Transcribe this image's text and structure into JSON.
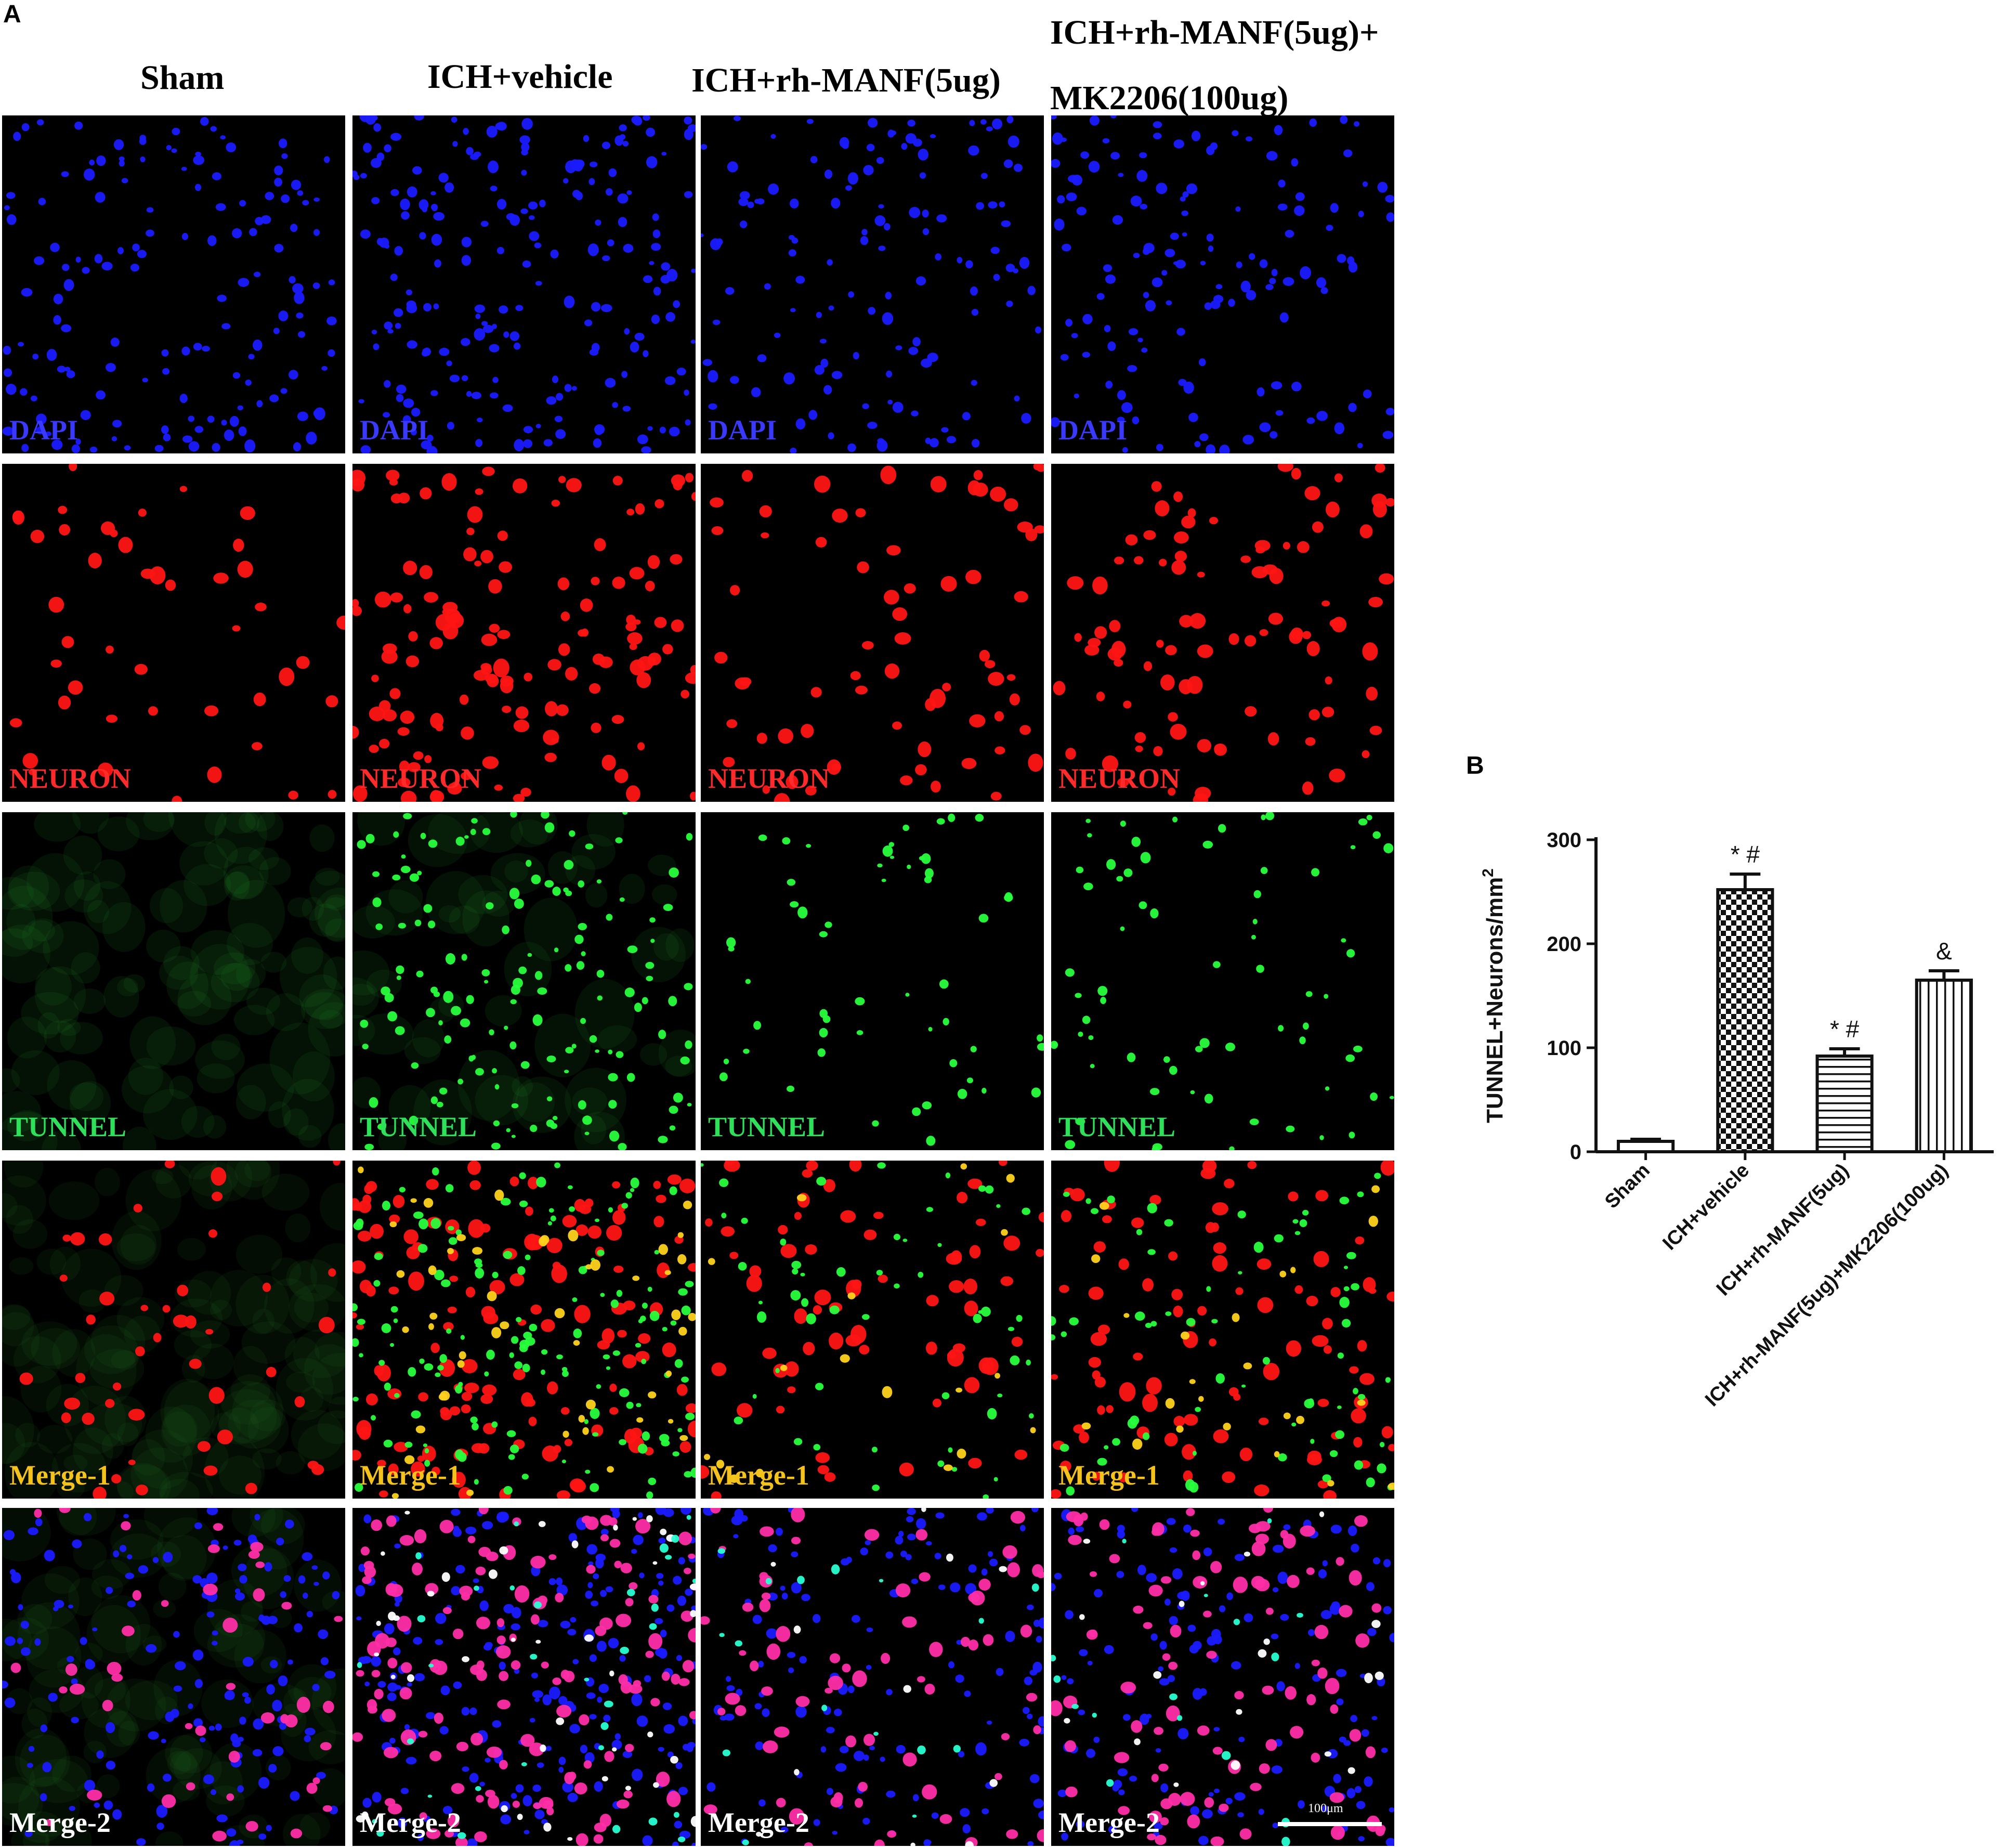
{
  "figure": {
    "panel_a_letter": "A",
    "panel_b_letter": "B",
    "columns": [
      {
        "lines": [
          "Sham"
        ]
      },
      {
        "lines": [
          "ICH+vehicle"
        ]
      },
      {
        "lines": [
          "ICH+rh-MANF(5ug)"
        ]
      },
      {
        "lines": [
          "ICH+rh-MANF(5ug)+",
          "MK2206(100ug)"
        ]
      }
    ],
    "rows": [
      {
        "label": "DAPI",
        "label_color": "#3a3aff"
      },
      {
        "label": "NEURON",
        "label_color": "#ff2a2a"
      },
      {
        "label": "TUNNEL",
        "label_color": "#2ee05a"
      },
      {
        "label": "Merge-1",
        "label_color": "#f5c21b"
      },
      {
        "label": "Merge-2",
        "label_color": "#ffffff"
      }
    ],
    "scalebar_label": "100μm"
  },
  "chart_data": {
    "type": "bar",
    "categories": [
      "Sham",
      "ICH+vehicle",
      "ICH+rh-MANF(5ug)",
      "ICH+rh-MANF(5ug)+MK2206(100ug)"
    ],
    "values": [
      10,
      252,
      92,
      165
    ],
    "errors": [
      2,
      15,
      7,
      9
    ],
    "annotations": [
      "",
      "* #",
      "* #",
      "&"
    ],
    "patterns": [
      "none",
      "checker",
      "horizontal",
      "vertical"
    ],
    "ylabel": "TUNNEL+Neurons/mm",
    "ylabel_superscript": "2",
    "yticks": [
      0,
      100,
      200,
      300
    ],
    "ylim": [
      0,
      300
    ],
    "xlabel": "",
    "title": ""
  }
}
